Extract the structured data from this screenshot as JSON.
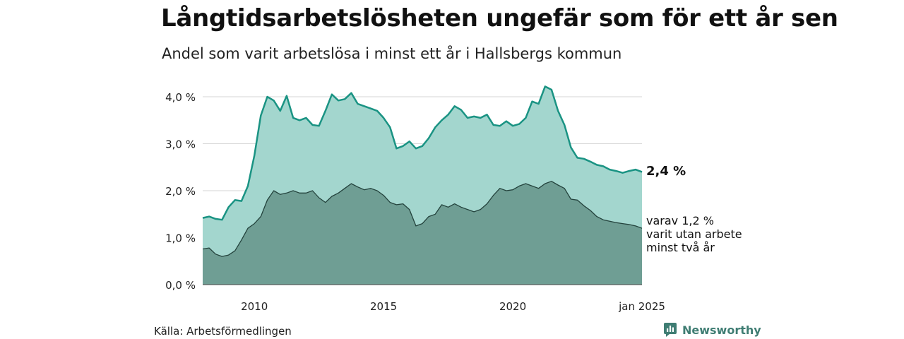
{
  "title": "Långtidsarbetslösheten ungefär som för ett år sen",
  "subtitle": "Andel som varit arbetslösa i minst ett år i Hallsbergs kommun",
  "source": "Källa: Arbetsförmedlingen",
  "brand": "Newsworthy",
  "colors": {
    "area_total": "#a3d6ce",
    "line_total": "#1a9383",
    "area_long": "#6f9e94",
    "line_long": "#24433d",
    "grid": "#d6d6d6",
    "brand": "#3f7d73"
  },
  "chart_data": {
    "type": "area",
    "title": "Långtidsarbetslösheten ungefär som för ett år sen",
    "subtitle": "Andel som varit arbetslösa i minst ett år i Hallsbergs kommun",
    "xlabel": "",
    "ylabel": "",
    "ylim": [
      0,
      4.3
    ],
    "yticks": [
      0,
      1,
      2,
      3,
      4
    ],
    "ytick_labels": [
      "0,0 %",
      "1,0 %",
      "2,0 %",
      "3,0 %",
      "4,0 %"
    ],
    "xlim": [
      "2008-01",
      "2025-01"
    ],
    "xticks": [
      "2010-01",
      "2015-01",
      "2020-01",
      "2025-01"
    ],
    "xtick_labels": [
      "2010",
      "2015",
      "2020",
      "jan 2025"
    ],
    "grid": true,
    "legend": "none",
    "x": [
      "2008-01",
      "2008-04",
      "2008-07",
      "2008-10",
      "2009-01",
      "2009-04",
      "2009-07",
      "2009-10",
      "2010-01",
      "2010-04",
      "2010-07",
      "2010-10",
      "2011-01",
      "2011-04",
      "2011-07",
      "2011-10",
      "2012-01",
      "2012-04",
      "2012-07",
      "2012-10",
      "2013-01",
      "2013-04",
      "2013-07",
      "2013-10",
      "2014-01",
      "2014-04",
      "2014-07",
      "2014-10",
      "2015-01",
      "2015-04",
      "2015-07",
      "2015-10",
      "2016-01",
      "2016-04",
      "2016-07",
      "2016-10",
      "2017-01",
      "2017-04",
      "2017-07",
      "2017-10",
      "2018-01",
      "2018-04",
      "2018-07",
      "2018-10",
      "2019-01",
      "2019-04",
      "2019-07",
      "2019-10",
      "2020-01",
      "2020-04",
      "2020-07",
      "2020-10",
      "2021-01",
      "2021-04",
      "2021-07",
      "2021-10",
      "2022-01",
      "2022-04",
      "2022-07",
      "2022-10",
      "2023-01",
      "2023-04",
      "2023-07",
      "2023-10",
      "2024-01",
      "2024-04",
      "2024-07",
      "2024-10",
      "2025-01"
    ],
    "series": [
      {
        "values": [
          1.42,
          1.45,
          1.4,
          1.38,
          1.65,
          1.8,
          1.78,
          2.1,
          2.75,
          3.6,
          4.0,
          3.92,
          3.7,
          4.02,
          3.55,
          3.5,
          3.55,
          3.4,
          3.38,
          3.7,
          4.05,
          3.92,
          3.95,
          4.08,
          3.85,
          3.8,
          3.75,
          3.7,
          3.55,
          3.35,
          2.9,
          2.95,
          3.05,
          2.9,
          2.95,
          3.12,
          3.35,
          3.5,
          3.62,
          3.8,
          3.72,
          3.55,
          3.58,
          3.55,
          3.62,
          3.4,
          3.38,
          3.48,
          3.38,
          3.42,
          3.55,
          3.9,
          3.85,
          4.22,
          4.15,
          3.7,
          3.4,
          2.92,
          2.7,
          2.68,
          2.62,
          2.55,
          2.52,
          2.45,
          2.42,
          2.38,
          2.42,
          2.45,
          2.4
        ]
      },
      {
        "values": [
          0.76,
          0.78,
          0.65,
          0.6,
          0.63,
          0.72,
          0.95,
          1.2,
          1.3,
          1.45,
          1.8,
          2.0,
          1.92,
          1.95,
          2.0,
          1.95,
          1.95,
          2.0,
          1.85,
          1.75,
          1.88,
          1.95,
          2.05,
          2.15,
          2.08,
          2.02,
          2.05,
          2.0,
          1.9,
          1.75,
          1.7,
          1.72,
          1.6,
          1.25,
          1.3,
          1.45,
          1.5,
          1.7,
          1.65,
          1.72,
          1.65,
          1.6,
          1.55,
          1.6,
          1.72,
          1.9,
          2.05,
          2.0,
          2.02,
          2.1,
          2.15,
          2.1,
          2.05,
          2.15,
          2.2,
          2.12,
          2.05,
          1.82,
          1.8,
          1.68,
          1.58,
          1.45,
          1.38,
          1.35,
          1.32,
          1.3,
          1.28,
          1.25,
          1.2
        ]
      }
    ],
    "annotations": {
      "last_total": "2,4 %",
      "last_long": [
        "varav 1,2 %",
        "varit utan arbete",
        "minst två år"
      ]
    }
  }
}
